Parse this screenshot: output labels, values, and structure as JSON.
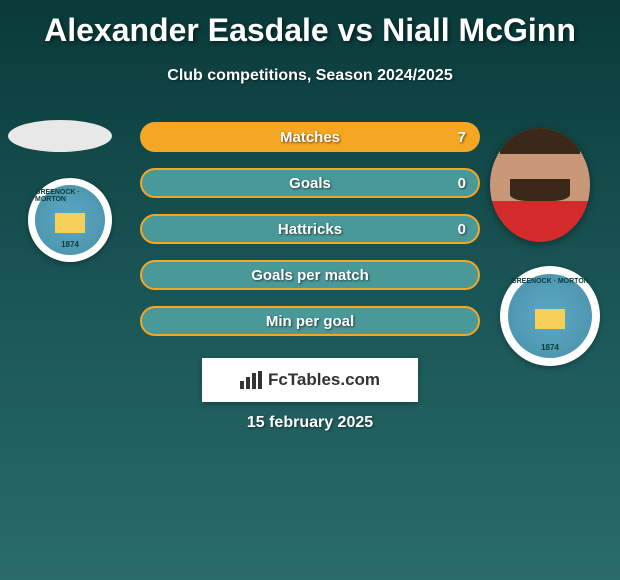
{
  "header": {
    "title": "Alexander Easdale vs Niall McGinn",
    "subtitle": "Club competitions, Season 2024/2025"
  },
  "stats": [
    {
      "label": "Matches",
      "value": "7",
      "full": true
    },
    {
      "label": "Goals",
      "value": "0",
      "full": false
    },
    {
      "label": "Hattricks",
      "value": "0",
      "full": false
    },
    {
      "label": "Goals per match",
      "value": "",
      "full": false
    },
    {
      "label": "Min per goal",
      "value": "",
      "full": false
    }
  ],
  "crest": {
    "top_text": "GREENOCK · MORTON",
    "year": "1874"
  },
  "branding": {
    "site": "FcTables.com"
  },
  "date": "15 february 2025",
  "colors": {
    "accent": "#f5a623",
    "bar_bg": "#4a9999",
    "jersey": "#d42a2a"
  }
}
